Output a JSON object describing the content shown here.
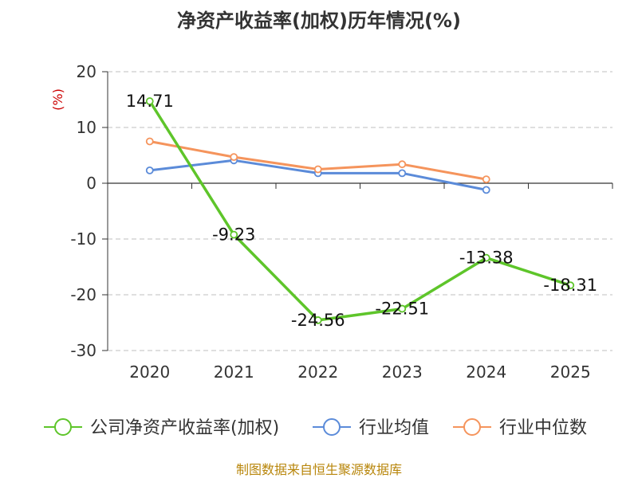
{
  "chart_data": {
    "type": "line",
    "title": "净资产收益率(加权)历年情况(%)",
    "y_unit": "(%)",
    "categories": [
      "2020",
      "2021",
      "2022",
      "2023",
      "2024",
      "2025"
    ],
    "ylim": [
      -30,
      20
    ],
    "yticks": [
      20,
      10,
      0,
      -10,
      -20,
      -30
    ],
    "grid": true,
    "legend_position": "bottom",
    "series": [
      {
        "name": "公司净资产收益率(加权)",
        "color": "#5ec52a",
        "values": [
          14.71,
          -9.23,
          -24.56,
          -22.51,
          -13.38,
          -18.31
        ],
        "labels": [
          "14.71",
          "-9.23",
          "-24.56",
          "-22.51",
          "-13.38",
          "-18.31"
        ]
      },
      {
        "name": "行业均值",
        "color": "#5b8bd9",
        "values": [
          2.3,
          4.1,
          1.8,
          1.8,
          -1.2,
          null
        ]
      },
      {
        "name": "行业中位数",
        "color": "#f5945c",
        "values": [
          7.5,
          4.7,
          2.5,
          3.4,
          0.7,
          null
        ]
      }
    ],
    "source": "制图数据来自恒生聚源数据库"
  }
}
